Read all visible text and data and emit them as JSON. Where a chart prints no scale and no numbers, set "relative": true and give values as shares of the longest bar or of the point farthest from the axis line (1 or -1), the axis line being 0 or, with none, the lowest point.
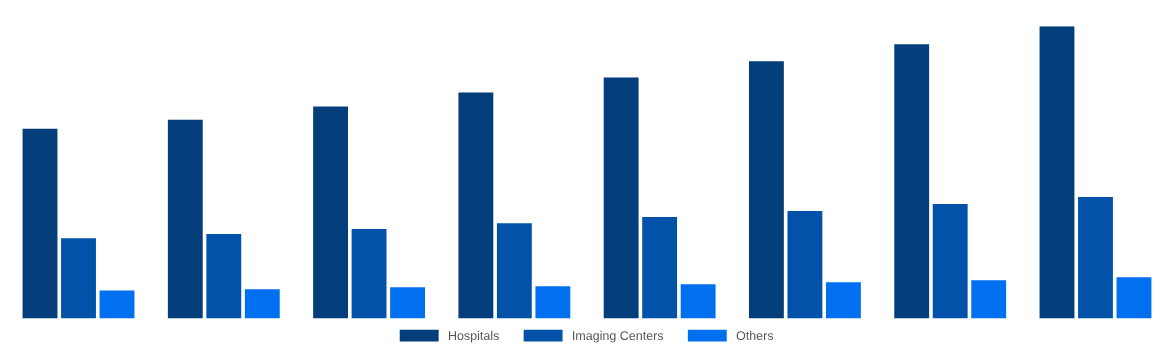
{
  "chart_data": {
    "type": "bar",
    "relative": true,
    "categories": [
      null,
      null,
      null,
      null,
      null,
      null,
      null,
      null
    ],
    "series": [
      {
        "name": "Hospitals",
        "color": "#033d7a",
        "values": [
          0.649,
          0.68,
          0.725,
          0.773,
          0.825,
          0.88,
          0.938,
          1
        ]
      },
      {
        "name": "Imaging Centers",
        "color": "#0152a8",
        "values": [
          0.275,
          0.289,
          0.306,
          0.326,
          0.347,
          0.368,
          0.392,
          0.416
        ]
      },
      {
        "name": "Others",
        "color": "#006ff0",
        "values": [
          0.096,
          0.1,
          0.107,
          0.11,
          0.117,
          0.124,
          0.131,
          0.141
        ]
      }
    ],
    "legend": "bottom",
    "grid": false
  }
}
